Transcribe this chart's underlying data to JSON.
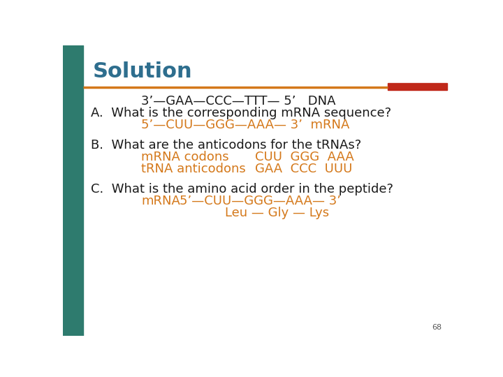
{
  "title": "Solution",
  "title_color": "#2E6E8E",
  "title_fontsize": 22,
  "bg_color": "#ffffff",
  "left_bar_color": "#2E7B6E",
  "separator_line_color": "#D4781A",
  "separator_rect_color": "#C0281A",
  "orange_color": "#D4781A",
  "black_color": "#1a1a1a",
  "line1": "3’—GAA—CCC—TTT— 5’   DNA",
  "line2": "A.  What is the corresponding mRNA sequence?",
  "line3": "5’—CUU—GGG—AAA— 3’  mRNA",
  "line4": "B.  What are the anticodons for the tRNAs?",
  "line5a": "mRNA codons",
  "line5b": "CUU  GGG  AAA",
  "line6a": "tRNA anticodons",
  "line6b": "GAA  CCC  UUU",
  "line7": "C.  What is the amino acid order in the peptide?",
  "line8a": "mRNA",
  "line8b": "5’—CUU—GGG—AAA— 3’",
  "line9": "Leu — Gly — Lys",
  "page_num": "68",
  "fs_main": 13,
  "fs_orange": 13
}
